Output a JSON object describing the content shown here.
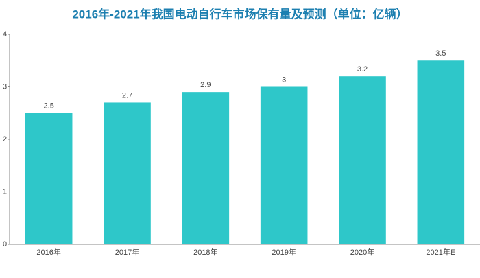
{
  "chart_data": {
    "type": "bar",
    "title": "2016年-2021年我国电动自行车市场保有量及预测（单位：亿辆）",
    "categories": [
      "2016年",
      "2017年",
      "2018年",
      "2019年",
      "2020年",
      "2021年E"
    ],
    "values": [
      2.5,
      2.7,
      2.9,
      3,
      3.2,
      3.5
    ],
    "color": "#2ec7c9",
    "ylim": [
      0,
      4
    ],
    "yticks": [
      0,
      1,
      2,
      3,
      4
    ],
    "grid": false
  }
}
